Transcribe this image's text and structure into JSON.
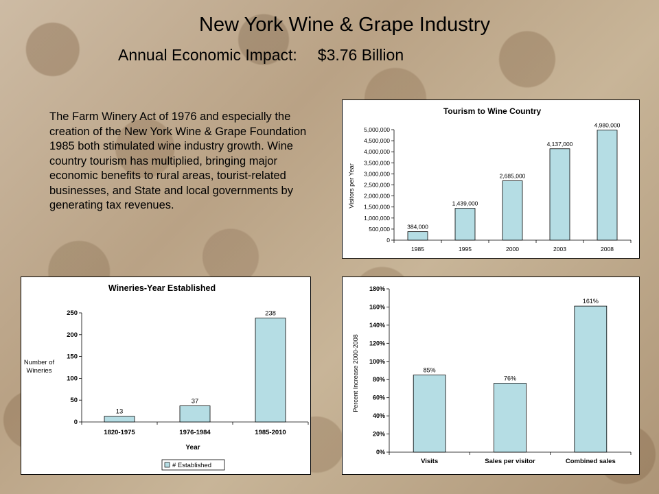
{
  "header": {
    "title": "New York Wine & Grape Industry",
    "subtitle_label": "Annual Economic Impact:",
    "subtitle_value": "$3.76 Billion"
  },
  "body_text": "The Farm Winery Act of 1976 and especially the creation of the New York Wine & Grape Foundation 1985 both stimulated wine industry growth.  Wine country tourism has multiplied, bringing major economic benefits to rural areas, tourist-related businesses, and State and local governments by generating tax revenues.",
  "colors": {
    "bar_fill": "#b5dde4",
    "bar_stroke": "#000000",
    "panel_bg": "#ffffff"
  },
  "chart_data": [
    {
      "type": "bar",
      "title": "Tourism to Wine Country",
      "xlabel": "",
      "ylabel": "Visitors per Year",
      "categories": [
        "1985",
        "1995",
        "2000",
        "2003",
        "2008"
      ],
      "values": [
        384000,
        1439000,
        2685000,
        4137000,
        4980000
      ],
      "value_labels": [
        "384,000",
        "1,439,000",
        "2,685,000",
        "4,137,000",
        "4,980,000"
      ],
      "ylim": [
        0,
        5000000
      ],
      "yticks": [
        0,
        500000,
        1000000,
        1500000,
        2000000,
        2500000,
        3000000,
        3500000,
        4000000,
        4500000,
        5000000
      ],
      "ytick_labels": [
        "0",
        "500,000",
        "1,000,000",
        "1,500,000",
        "2,000,000",
        "2,500,000",
        "3,000,000",
        "3,500,000",
        "4,000,000",
        "4,500,000",
        "5,000,000"
      ],
      "grid": false,
      "legend": "none"
    },
    {
      "type": "bar",
      "title": "Wineries-Year Established",
      "xlabel": "Year",
      "ylabel": "Number of Wineries",
      "categories": [
        "1820-1975",
        "1976-1984",
        "1985-2010"
      ],
      "values": [
        13,
        37,
        238
      ],
      "value_labels": [
        "13",
        "37",
        "238"
      ],
      "ylim": [
        0,
        250
      ],
      "yticks": [
        0,
        50,
        100,
        150,
        200,
        250
      ],
      "ytick_labels": [
        "0",
        "50",
        "100",
        "150",
        "200",
        "250"
      ],
      "grid": false,
      "legend": "bottom-right",
      "series": [
        {
          "name": "# Established",
          "values": [
            13,
            37,
            238
          ]
        }
      ]
    },
    {
      "type": "bar",
      "title": "",
      "xlabel": "",
      "ylabel": "Percent Increase 2000-2008",
      "categories": [
        "Visits",
        "Sales per visitor",
        "Combined sales"
      ],
      "values": [
        85,
        76,
        161
      ],
      "value_labels": [
        "85%",
        "76%",
        "161%"
      ],
      "ylim": [
        0,
        180
      ],
      "yticks": [
        0,
        20,
        40,
        60,
        80,
        100,
        120,
        140,
        160,
        180
      ],
      "ytick_labels": [
        "0%",
        "20%",
        "40%",
        "60%",
        "80%",
        "100%",
        "120%",
        "140%",
        "160%",
        "180%"
      ],
      "grid": false,
      "legend": "none"
    }
  ]
}
